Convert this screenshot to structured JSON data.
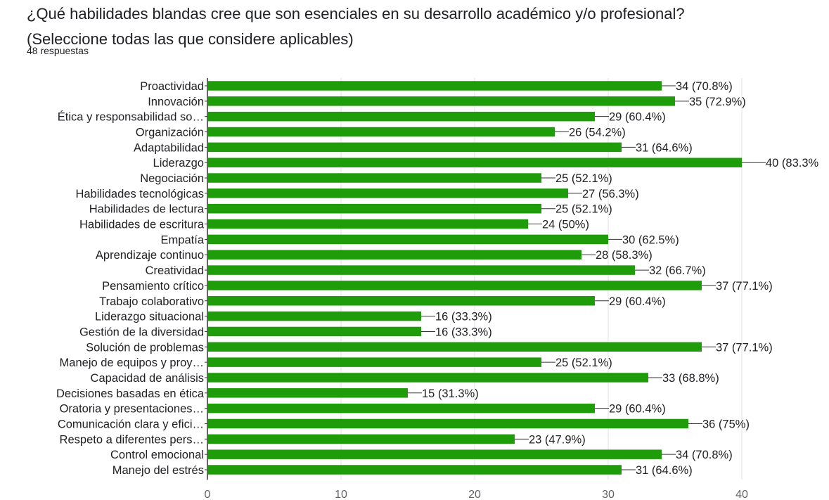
{
  "title_line1": "¿Qué habilidades blandas cree que son esenciales en su desarrollo académico y/o profesional?",
  "title_line2": "(Seleccione todas las que considere aplicables)",
  "responses": "48 respuestas",
  "colors": {
    "bar": "#1e9c0a",
    "grid": "#e0e0e0",
    "axis": "#333333",
    "leader": "#333333"
  },
  "chart_data": {
    "type": "bar",
    "orientation": "horizontal",
    "title": "¿Qué habilidades blandas cree que son esenciales en su desarrollo académico y/o profesional? (Seleccione todas las que considere aplicables)",
    "categories": [
      "Proactividad",
      "Innovación",
      "Ética y responsabilidad so…",
      "Organización",
      "Adaptabilidad",
      "Liderazgo",
      "Negociación",
      "Habilidades tecnológicas",
      "Habilidades de lectura",
      "Habilidades de escritura",
      "Empatía",
      "Aprendizaje continuo",
      "Creatividad",
      "Pensamiento crítico",
      "Trabajo colaborativo",
      "Liderazgo situacional",
      "Gestión de la diversidad",
      "Solución de problemas",
      "Manejo de equipos y proy…",
      "Capacidad de análisis",
      "Decisiones basadas en ética",
      "Oratoria y presentaciones…",
      "Comunicación clara y efici…",
      "Respeto a diferentes pers…",
      "Control emocional",
      "Manejo del estrés"
    ],
    "values": [
      34,
      35,
      29,
      26,
      31,
      40,
      25,
      27,
      25,
      24,
      30,
      28,
      32,
      37,
      29,
      16,
      16,
      37,
      25,
      33,
      15,
      29,
      36,
      23,
      34,
      31
    ],
    "data_labels": [
      "34 (70.8%)",
      "35 (72.9%)",
      "29 (60.4%)",
      "26 (54.2%)",
      "31 (64.6%)",
      "40 (83.3%",
      "25 (52.1%)",
      "27 (56.3%)",
      "25 (52.1%)",
      "24 (50%)",
      "30 (62.5%)",
      "28 (58.3%)",
      "32 (66.7%)",
      "37 (77.1%)",
      "29 (60.4%)",
      "16 (33.3%)",
      "16 (33.3%)",
      "37 (77.1%)",
      "25 (52.1%)",
      "33 (68.8%)",
      "15 (31.3%)",
      "29 (60.4%)",
      "36 (75%)",
      "23 (47.9%)",
      "34 (70.8%)",
      "31 (64.6%)"
    ],
    "xlim": [
      0,
      40
    ],
    "xticks": [
      "0",
      "10",
      "20",
      "30",
      "40"
    ],
    "grid": true,
    "legend": "none"
  }
}
